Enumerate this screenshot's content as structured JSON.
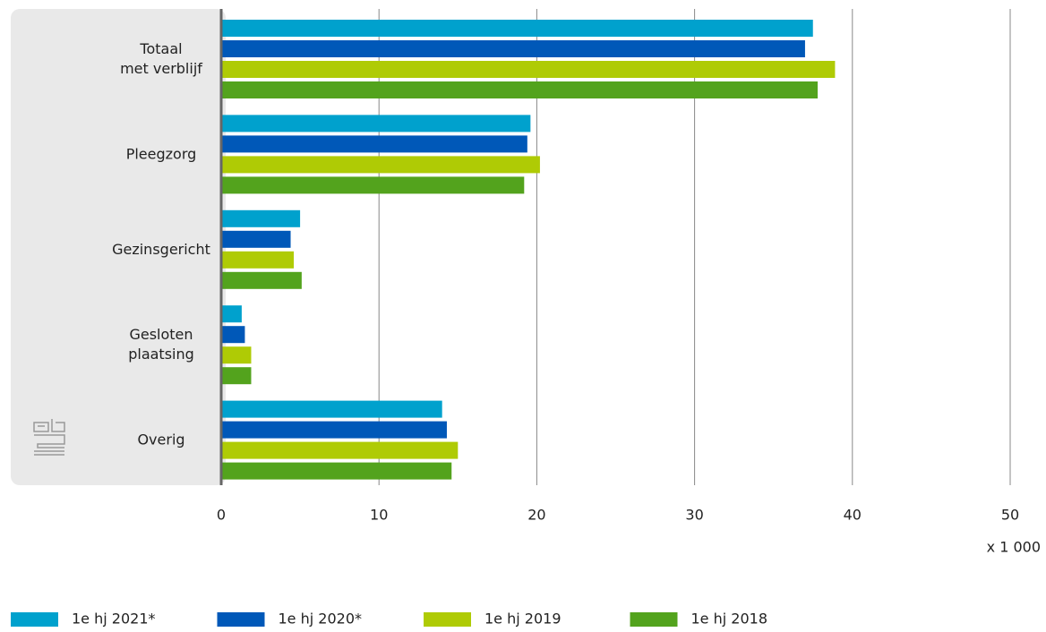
{
  "chart_data": {
    "type": "barh",
    "categories": [
      "Totaal\nmet verblijf",
      "Pleegzorg",
      "Gezinsgericht",
      "Gesloten\nplaatsing",
      "Overig"
    ],
    "series": [
      {
        "name": "1e hj 2021*",
        "color": "#00a1cd",
        "values": [
          37.5,
          19.6,
          5.0,
          1.3,
          14.0
        ]
      },
      {
        "name": "1e hj 2020*",
        "color": "#0058b8",
        "values": [
          37.0,
          19.4,
          4.4,
          1.5,
          14.3
        ]
      },
      {
        "name": "1e hj 2019",
        "color": "#afcb05",
        "values": [
          38.9,
          20.2,
          4.6,
          1.9,
          15.0
        ]
      },
      {
        "name": "1e hj 2018",
        "color": "#53a31d",
        "values": [
          37.8,
          19.2,
          5.1,
          1.9,
          14.6
        ]
      }
    ],
    "xlim": [
      0,
      50
    ],
    "xticks": [
      0,
      10,
      20,
      30,
      40,
      50
    ],
    "xlabel": "x 1 000",
    "grid": true,
    "legend": "bottom"
  }
}
